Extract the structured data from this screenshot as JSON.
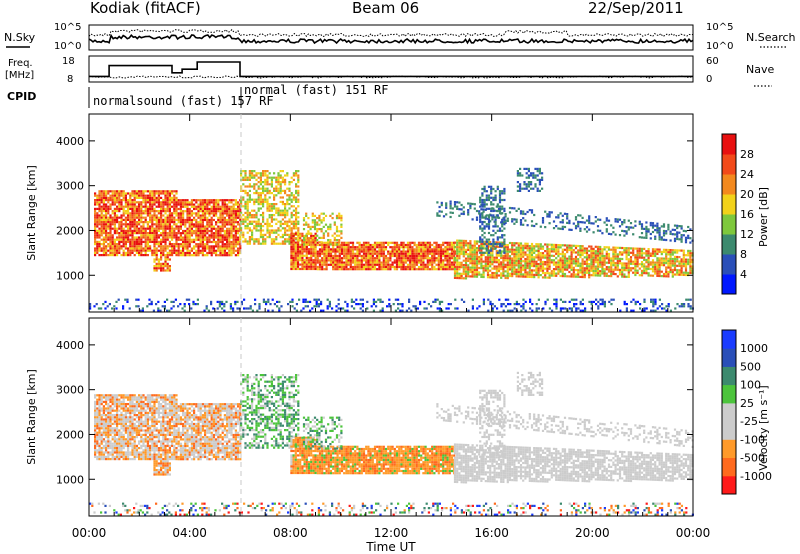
{
  "header": {
    "station": "Kodiak (fitACF)",
    "beam": "Beam 06",
    "date": "22/Sep/2011"
  },
  "colors": {
    "power": [
      "#0018ff",
      "#2a4fb8",
      "#3c8a6e",
      "#7ec83c",
      "#f2d21a",
      "#f3891e",
      "#f24a1a",
      "#e81010"
    ],
    "velocity": [
      "#ff1a1a",
      "#ff6a1e",
      "#ff9a2a",
      "#cccccc",
      "#cccccc",
      "#4cc43c",
      "#3c8a6e",
      "#2a4fb8",
      "#1a3cff"
    ],
    "trace": "#000000"
  },
  "chart_data": [
    {
      "type": "line",
      "panel": "noise",
      "left_label": "N.Sky",
      "right_label": "N.Search",
      "left_ticks": [
        "10^5",
        "10^0"
      ],
      "right_ticks": [
        "10^5",
        "10^0"
      ],
      "x_range_hours": [
        0,
        24
      ]
    },
    {
      "type": "line",
      "panel": "frequency",
      "left_label": "Freq.",
      "left_unit": "[MHz]",
      "right_label": "Nave",
      "left_ticks": [
        "18",
        "8"
      ],
      "right_ticks": [
        "60",
        "0"
      ],
      "segments": [
        {
          "from": 0,
          "to": 0.8,
          "mhz": 10
        },
        {
          "from": 0.8,
          "to": 3.3,
          "mhz": 16
        },
        {
          "from": 3.3,
          "to": 3.7,
          "mhz": 12
        },
        {
          "from": 3.7,
          "to": 4.3,
          "mhz": 14
        },
        {
          "from": 4.3,
          "to": 6.0,
          "mhz": 18
        },
        {
          "from": 6.0,
          "to": 24,
          "mhz": 10
        }
      ]
    },
    {
      "type": "table",
      "panel": "cpid",
      "label": "CPID",
      "entries": [
        {
          "text": "normalsound (fast) 157 RF",
          "start_hour": 0
        },
        {
          "text": "normal (fast) 151 RF",
          "start_hour": 6.0
        }
      ]
    },
    {
      "type": "heatmap",
      "panel": "power",
      "ylabel": "Slant Range [km]",
      "yticks": [
        1000,
        2000,
        3000,
        4000
      ],
      "ylim": [
        180,
        4600
      ],
      "colorbar_label": "Power [dB]",
      "colorbar_ticks": [
        "28",
        "24",
        "20",
        "16",
        "12",
        "8",
        "4"
      ]
    },
    {
      "type": "heatmap",
      "panel": "velocity",
      "ylabel": "Slant Range [km]",
      "yticks": [
        1000,
        2000,
        3000,
        4000
      ],
      "ylim": [
        180,
        4600
      ],
      "colorbar_label": "Velocity [m s⁻¹]",
      "colorbar_ticks": [
        "1000",
        "500",
        "100",
        "25",
        "-25",
        "-100",
        "-500",
        "-1000"
      ]
    }
  ],
  "x_axis": {
    "label": "Time UT",
    "ticks": [
      "00:00",
      "04:00",
      "08:00",
      "12:00",
      "16:00",
      "20:00",
      "00:00"
    ],
    "range_hours": [
      0,
      24
    ]
  }
}
